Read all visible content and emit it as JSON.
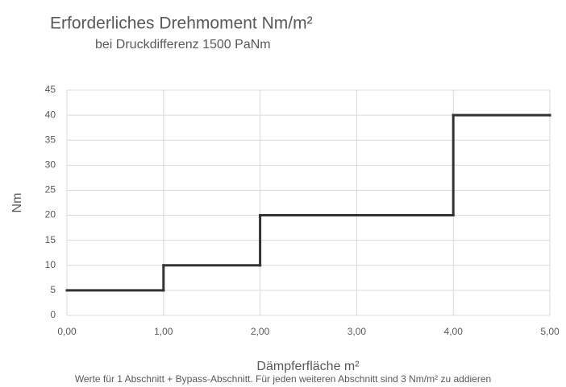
{
  "chart_data": {
    "type": "line",
    "step": "post",
    "title": "Erforderliches Drehmoment Nm/m²",
    "subtitle": "bei Druckdifferenz 1500 PaNm",
    "x_label": "Dämpferfläche m²",
    "y_label": "Nm",
    "footnote": "Werte für 1 Abschnitt + Bypass-Abschnitt. Für jeden weiteren Abschnitt sind 3 Nm/m² zu addieren",
    "x": [
      0,
      1,
      2,
      4,
      5
    ],
    "values": [
      5,
      10,
      20,
      40,
      40
    ],
    "color": "#333333",
    "xlim": [
      0,
      5
    ],
    "xticks": [
      {
        "value": 0,
        "label": "0,00"
      },
      {
        "value": 1,
        "label": "1,00"
      },
      {
        "value": 2,
        "label": "2,00"
      },
      {
        "value": 3,
        "label": "3,00"
      },
      {
        "value": 4,
        "label": "4,00"
      },
      {
        "value": 5,
        "label": "5,00"
      }
    ],
    "ylim": [
      0,
      45
    ],
    "yticks": [
      0,
      5,
      10,
      15,
      20,
      25,
      30,
      35,
      40,
      45
    ],
    "grid": true
  }
}
